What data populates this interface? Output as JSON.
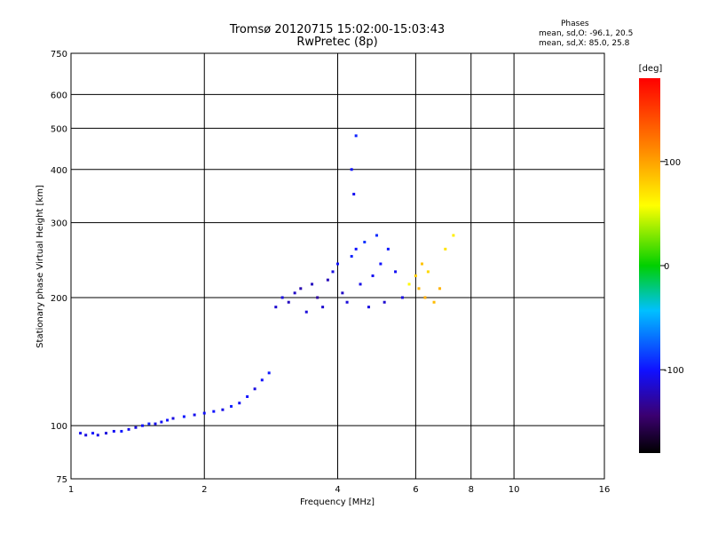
{
  "chart_data": {
    "type": "scatter",
    "title": "Tromsø 20120715 15:02:00-15:03:43",
    "subtitle": "RwPretec (8p)",
    "xlabel": "Frequency [MHz]",
    "ylabel": "Stationary phase Virtual Height [km]",
    "x_scale": "log",
    "y_scale": "log",
    "xlim": [
      1,
      16
    ],
    "ylim": [
      75,
      750
    ],
    "x_ticks": [
      1,
      2,
      4,
      6,
      8,
      10,
      16
    ],
    "x_tick_labels": [
      "1",
      "2",
      "4",
      "6",
      "8",
      "10",
      "16"
    ],
    "y_ticks": [
      75,
      100,
      200,
      300,
      400,
      500,
      600,
      750
    ],
    "y_tick_labels": [
      "75",
      "100",
      "200",
      "300",
      "400",
      "500",
      "600",
      "750"
    ],
    "grid": true,
    "colorbar": {
      "label": "[deg]",
      "range": [
        -180,
        180
      ],
      "ticks": [
        100,
        0,
        -100
      ],
      "tick_labels": [
        "100",
        "0",
        "-100"
      ]
    },
    "notes": [
      "Phases",
      "mean, sd,O: -96.1, 20.5",
      "mean, sd,X: 85.0, 25.8"
    ],
    "series": [
      {
        "values": [
          {
            "x": 1.05,
            "y": 96,
            "c": -105
          },
          {
            "x": 1.08,
            "y": 95,
            "c": -110
          },
          {
            "x": 1.12,
            "y": 96,
            "c": -100
          },
          {
            "x": 1.15,
            "y": 95,
            "c": -108
          },
          {
            "x": 1.2,
            "y": 96,
            "c": -112
          },
          {
            "x": 1.25,
            "y": 97,
            "c": -104
          },
          {
            "x": 1.3,
            "y": 97,
            "c": -98
          },
          {
            "x": 1.35,
            "y": 98,
            "c": -106
          },
          {
            "x": 1.4,
            "y": 99,
            "c": -110
          },
          {
            "x": 1.45,
            "y": 100,
            "c": -102
          },
          {
            "x": 1.5,
            "y": 101,
            "c": -96
          },
          {
            "x": 1.55,
            "y": 101,
            "c": -108
          },
          {
            "x": 1.6,
            "y": 102,
            "c": -104
          },
          {
            "x": 1.65,
            "y": 103,
            "c": -100
          },
          {
            "x": 1.7,
            "y": 104,
            "c": -110
          },
          {
            "x": 1.8,
            "y": 105,
            "c": -98
          },
          {
            "x": 1.9,
            "y": 106,
            "c": -106
          },
          {
            "x": 2.0,
            "y": 107,
            "c": -102
          },
          {
            "x": 2.1,
            "y": 108,
            "c": -100
          },
          {
            "x": 2.2,
            "y": 109,
            "c": -108
          },
          {
            "x": 2.3,
            "y": 111,
            "c": -96
          },
          {
            "x": 2.4,
            "y": 113,
            "c": -104
          },
          {
            "x": 2.5,
            "y": 117,
            "c": -100
          },
          {
            "x": 2.6,
            "y": 122,
            "c": -110
          },
          {
            "x": 2.7,
            "y": 128,
            "c": -102
          },
          {
            "x": 2.8,
            "y": 133,
            "c": -98
          }
        ]
      },
      {
        "values": [
          {
            "x": 2.9,
            "y": 190,
            "c": -115
          },
          {
            "x": 3.0,
            "y": 200,
            "c": -110
          },
          {
            "x": 3.1,
            "y": 195,
            "c": -120
          },
          {
            "x": 3.2,
            "y": 205,
            "c": -118
          },
          {
            "x": 3.3,
            "y": 210,
            "c": -125
          },
          {
            "x": 3.4,
            "y": 185,
            "c": -112
          },
          {
            "x": 3.5,
            "y": 215,
            "c": -120
          },
          {
            "x": 3.6,
            "y": 200,
            "c": -130
          },
          {
            "x": 3.7,
            "y": 190,
            "c": -115
          },
          {
            "x": 3.8,
            "y": 220,
            "c": -122
          },
          {
            "x": 3.9,
            "y": 230,
            "c": -110
          },
          {
            "x": 4.0,
            "y": 240,
            "c": -100
          },
          {
            "x": 4.1,
            "y": 205,
            "c": -118
          },
          {
            "x": 4.2,
            "y": 195,
            "c": -112
          },
          {
            "x": 4.3,
            "y": 250,
            "c": -95
          },
          {
            "x": 4.4,
            "y": 260,
            "c": -100
          },
          {
            "x": 4.5,
            "y": 215,
            "c": -108
          },
          {
            "x": 4.6,
            "y": 270,
            "c": -90
          },
          {
            "x": 4.7,
            "y": 190,
            "c": -110
          },
          {
            "x": 4.8,
            "y": 225,
            "c": -105
          },
          {
            "x": 4.9,
            "y": 280,
            "c": -92
          },
          {
            "x": 5.0,
            "y": 240,
            "c": -100
          },
          {
            "x": 5.1,
            "y": 195,
            "c": -115
          },
          {
            "x": 5.2,
            "y": 260,
            "c": -98
          },
          {
            "x": 5.4,
            "y": 230,
            "c": -104
          },
          {
            "x": 5.6,
            "y": 200,
            "c": -110
          },
          {
            "x": 4.3,
            "y": 400,
            "c": -100
          },
          {
            "x": 4.4,
            "y": 480,
            "c": -95
          },
          {
            "x": 4.35,
            "y": 350,
            "c": -105
          }
        ]
      },
      {
        "values": [
          {
            "x": 5.8,
            "y": 215,
            "c": 60
          },
          {
            "x": 6.0,
            "y": 225,
            "c": 80
          },
          {
            "x": 6.1,
            "y": 210,
            "c": 90
          },
          {
            "x": 6.2,
            "y": 240,
            "c": 85
          },
          {
            "x": 6.3,
            "y": 200,
            "c": 95
          },
          {
            "x": 6.4,
            "y": 230,
            "c": 75
          },
          {
            "x": 6.6,
            "y": 195,
            "c": 88
          },
          {
            "x": 6.8,
            "y": 210,
            "c": 92
          },
          {
            "x": 7.0,
            "y": 260,
            "c": 70
          },
          {
            "x": 7.3,
            "y": 280,
            "c": 65
          }
        ]
      }
    ]
  }
}
